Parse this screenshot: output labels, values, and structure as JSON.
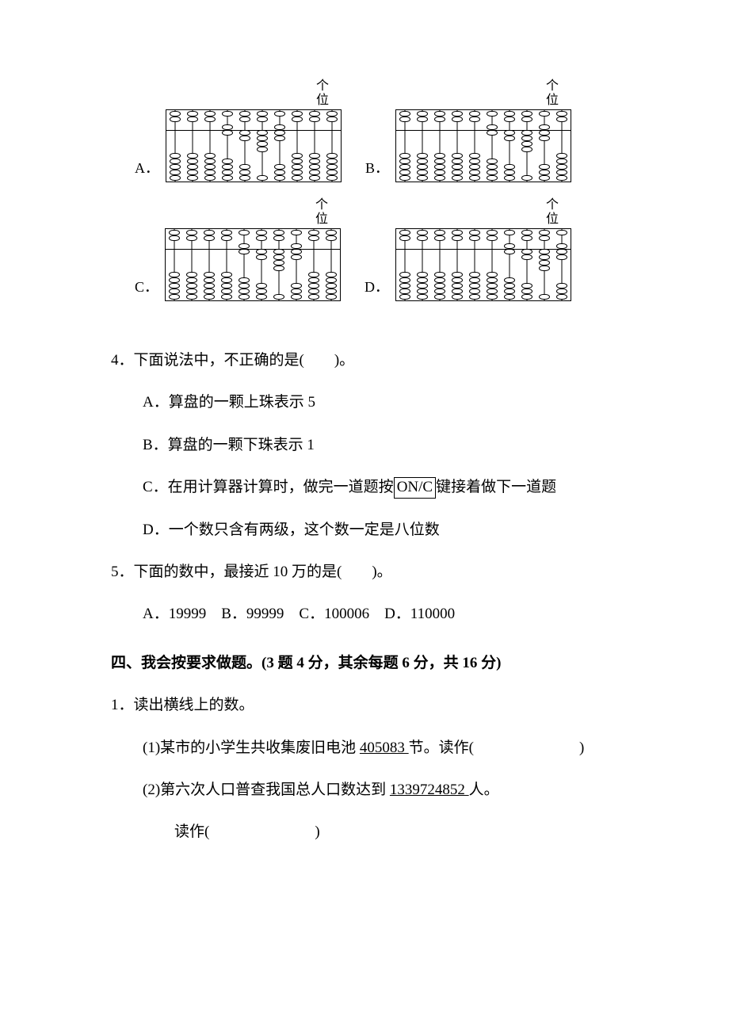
{
  "abacus_header": {
    "line1": "个",
    "line2": "位"
  },
  "abacus_options": [
    {
      "label": "A．",
      "rods": [
        {
          "upper_down": 0,
          "upper_up": 2,
          "lower_up": 0,
          "lower_down": 5
        },
        {
          "upper_down": 0,
          "upper_up": 2,
          "lower_up": 0,
          "lower_down": 5
        },
        {
          "upper_down": 0,
          "upper_up": 2,
          "lower_up": 0,
          "lower_down": 5
        },
        {
          "upper_down": 1,
          "upper_up": 1,
          "lower_up": 1,
          "lower_down": 4
        },
        {
          "upper_down": 0,
          "upper_up": 2,
          "lower_up": 2,
          "lower_down": 3
        },
        {
          "upper_down": 0,
          "upper_up": 2,
          "lower_up": 4,
          "lower_down": 1
        },
        {
          "upper_down": 1,
          "upper_up": 1,
          "lower_up": 2,
          "lower_down": 3
        },
        {
          "upper_down": 0,
          "upper_up": 2,
          "lower_up": 0,
          "lower_down": 5
        },
        {
          "upper_down": 0,
          "upper_up": 2,
          "lower_up": 0,
          "lower_down": 5
        },
        {
          "upper_down": 0,
          "upper_up": 2,
          "lower_up": 0,
          "lower_down": 5
        }
      ]
    },
    {
      "label": "B．",
      "rods": [
        {
          "upper_down": 0,
          "upper_up": 2,
          "lower_up": 0,
          "lower_down": 5
        },
        {
          "upper_down": 0,
          "upper_up": 2,
          "lower_up": 0,
          "lower_down": 5
        },
        {
          "upper_down": 0,
          "upper_up": 2,
          "lower_up": 0,
          "lower_down": 5
        },
        {
          "upper_down": 0,
          "upper_up": 2,
          "lower_up": 0,
          "lower_down": 5
        },
        {
          "upper_down": 0,
          "upper_up": 2,
          "lower_up": 0,
          "lower_down": 5
        },
        {
          "upper_down": 1,
          "upper_up": 1,
          "lower_up": 1,
          "lower_down": 4
        },
        {
          "upper_down": 0,
          "upper_up": 2,
          "lower_up": 2,
          "lower_down": 3
        },
        {
          "upper_down": 0,
          "upper_up": 2,
          "lower_up": 4,
          "lower_down": 1
        },
        {
          "upper_down": 1,
          "upper_up": 1,
          "lower_up": 2,
          "lower_down": 3
        },
        {
          "upper_down": 0,
          "upper_up": 2,
          "lower_up": 0,
          "lower_down": 5
        }
      ]
    },
    {
      "label": "C．",
      "rods": [
        {
          "upper_down": 0,
          "upper_up": 2,
          "lower_up": 0,
          "lower_down": 5
        },
        {
          "upper_down": 0,
          "upper_up": 2,
          "lower_up": 0,
          "lower_down": 5
        },
        {
          "upper_down": 0,
          "upper_up": 2,
          "lower_up": 0,
          "lower_down": 5
        },
        {
          "upper_down": 0,
          "upper_up": 2,
          "lower_up": 0,
          "lower_down": 5
        },
        {
          "upper_down": 1,
          "upper_up": 1,
          "lower_up": 1,
          "lower_down": 4
        },
        {
          "upper_down": 0,
          "upper_up": 2,
          "lower_up": 2,
          "lower_down": 3
        },
        {
          "upper_down": 0,
          "upper_up": 2,
          "lower_up": 4,
          "lower_down": 1
        },
        {
          "upper_down": 1,
          "upper_up": 1,
          "lower_up": 2,
          "lower_down": 3
        },
        {
          "upper_down": 0,
          "upper_up": 2,
          "lower_up": 0,
          "lower_down": 5
        },
        {
          "upper_down": 0,
          "upper_up": 2,
          "lower_up": 0,
          "lower_down": 5
        }
      ]
    },
    {
      "label": "D．",
      "rods": [
        {
          "upper_down": 0,
          "upper_up": 2,
          "lower_up": 0,
          "lower_down": 5
        },
        {
          "upper_down": 0,
          "upper_up": 2,
          "lower_up": 0,
          "lower_down": 5
        },
        {
          "upper_down": 0,
          "upper_up": 2,
          "lower_up": 0,
          "lower_down": 5
        },
        {
          "upper_down": 0,
          "upper_up": 2,
          "lower_up": 0,
          "lower_down": 5
        },
        {
          "upper_down": 0,
          "upper_up": 2,
          "lower_up": 0,
          "lower_down": 5
        },
        {
          "upper_down": 0,
          "upper_up": 2,
          "lower_up": 0,
          "lower_down": 5
        },
        {
          "upper_down": 1,
          "upper_up": 1,
          "lower_up": 1,
          "lower_down": 4
        },
        {
          "upper_down": 0,
          "upper_up": 2,
          "lower_up": 2,
          "lower_down": 3
        },
        {
          "upper_down": 0,
          "upper_up": 2,
          "lower_up": 4,
          "lower_down": 1
        },
        {
          "upper_down": 1,
          "upper_up": 1,
          "lower_up": 2,
          "lower_down": 3
        }
      ]
    }
  ],
  "q4": {
    "stem": "4．下面说法中，不正确的是(　　)。",
    "A": "A．算盘的一颗上珠表示 5",
    "B": "B．算盘的一颗下珠表示 1",
    "C_pre": "C．在用计算器计算时，做完一道题按",
    "C_key": "ON/C",
    "C_post": "键接着做下一道题",
    "D": "D．一个数只含有两级，这个数一定是八位数"
  },
  "q5": {
    "stem": "5．下面的数中，最接近 10 万的是(　　)。",
    "opts": "A．19999　B．99999　C．100006　D．110000"
  },
  "section4": "四、我会按要求做题。(3 题 4 分，其余每题 6 分，共 16 分)",
  "s4q1": {
    "stem": "1．读出横线上的数。",
    "p1_pre": "(1)某市的小学生共收集废旧电池 ",
    "p1_num": "405083 ",
    "p1_post": "节。读作(　　　　　　　)",
    "p2_pre": "(2)第六次人口普查我国总人口数达到 ",
    "p2_num": "1339724852 ",
    "p2_post": "人。",
    "p2_ans": "读作(　　　　　　　)"
  }
}
